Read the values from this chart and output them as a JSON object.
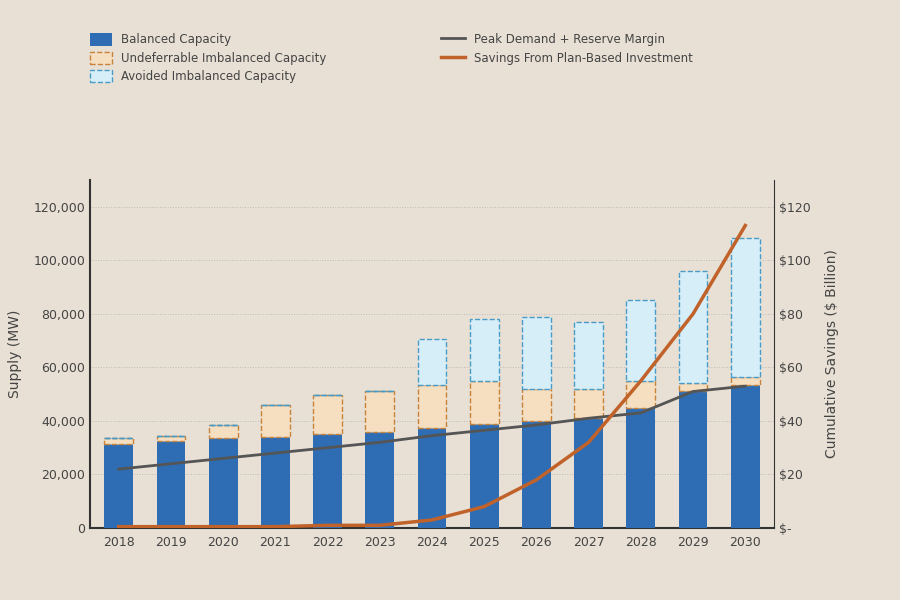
{
  "years": [
    2018,
    2019,
    2020,
    2021,
    2022,
    2023,
    2024,
    2025,
    2026,
    2027,
    2028,
    2029,
    2030
  ],
  "balanced_capacity": [
    31500,
    32500,
    33500,
    34000,
    35000,
    36000,
    37500,
    39000,
    40000,
    41000,
    45000,
    51000,
    53500
  ],
  "undeferrable_imbalanced": [
    2000,
    2000,
    5000,
    12000,
    14500,
    15000,
    16000,
    16000,
    12000,
    11000,
    10000,
    3000,
    3000
  ],
  "avoided_imbalanced": [
    0,
    0,
    0,
    0,
    0,
    0,
    17000,
    23000,
    27000,
    25000,
    30000,
    42000,
    52000
  ],
  "peak_demand": [
    22000,
    24000,
    26000,
    28000,
    30000,
    32000,
    34500,
    36500,
    38500,
    41000,
    43000,
    51000,
    53000
  ],
  "savings_billions": [
    0.5,
    0.5,
    0.5,
    0.5,
    1.0,
    1.0,
    3.0,
    8.0,
    18.0,
    32.0,
    55.0,
    80.0,
    113.0
  ],
  "background_color": "#e8e0d5",
  "balanced_color": "#2e6db4",
  "undeferrable_fill": "#f5dfc0",
  "undeferrable_edge": "#c8823a",
  "avoided_fill": "#d6eef8",
  "avoided_edge": "#4a9cc8",
  "peak_demand_color": "#555555",
  "savings_color": "#c0622a",
  "ylim_left": [
    0,
    130000
  ],
  "ylim_right": [
    0,
    130
  ],
  "yticks_left": [
    0,
    20000,
    40000,
    60000,
    80000,
    100000,
    120000
  ],
  "ytick_labels_right": [
    "$-",
    "$20",
    "$40",
    "$60",
    "$80",
    "$100",
    "$120"
  ],
  "bar_width": 0.55
}
